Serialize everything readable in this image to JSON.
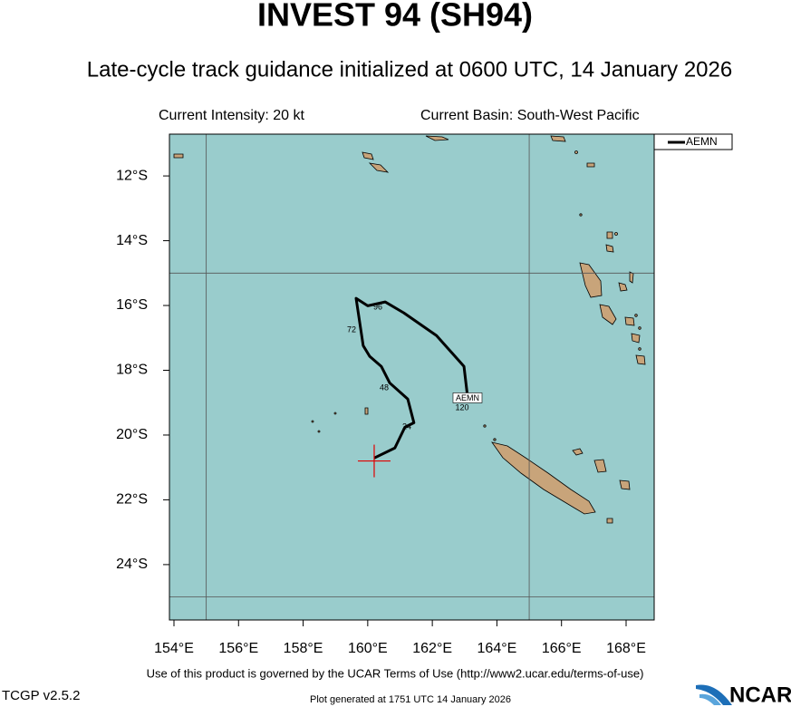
{
  "chart_data": {
    "type": "map",
    "title": "INVEST 94 (SH94)",
    "subtitle": "Late-cycle track guidance initialized at 0600 UTC, 14 January 2026",
    "annotations": [
      "Current Intensity: 20 kt",
      "Current Basin: South-West Pacific"
    ],
    "xlim": [
      153.86,
      168.87
    ],
    "ylim": [
      -25.71,
      -10.71
    ],
    "xticks": [
      {
        "value": 154,
        "label": "154°E"
      },
      {
        "value": 156,
        "label": "156°E"
      },
      {
        "value": 158,
        "label": "158°E"
      },
      {
        "value": 160,
        "label": "160°E"
      },
      {
        "value": 162,
        "label": "162°E"
      },
      {
        "value": 164,
        "label": "164°E"
      },
      {
        "value": 166,
        "label": "166°E"
      },
      {
        "value": 168,
        "label": "168°E"
      }
    ],
    "yticks": [
      {
        "value": -12,
        "label": "12°S"
      },
      {
        "value": -14,
        "label": "14°S"
      },
      {
        "value": -16,
        "label": "16°S"
      },
      {
        "value": -18,
        "label": "18°S"
      },
      {
        "value": -20,
        "label": "20°S"
      },
      {
        "value": -22,
        "label": "22°S"
      },
      {
        "value": -24,
        "label": "24°S"
      }
    ],
    "grid_x": [
      155,
      165
    ],
    "grid_y": [
      -15,
      -25
    ],
    "legend": "top-right",
    "current_position": {
      "x": 160.2,
      "y": -20.8,
      "color": "#e00000"
    },
    "series": [
      {
        "name": "AEMN",
        "color": "#000000",
        "x": [
          160.2,
          160.84,
          161.15,
          161.43,
          161.24,
          160.68,
          160.42,
          160.06,
          159.86,
          159.64,
          160.0,
          160.54,
          161.12,
          162.13,
          162.98,
          163.09
        ],
        "y": [
          -20.71,
          -20.4,
          -19.76,
          -19.62,
          -18.89,
          -18.39,
          -17.88,
          -17.57,
          -17.24,
          -15.78,
          -16.01,
          -15.89,
          -16.23,
          -16.93,
          -17.88,
          -18.81
        ],
        "hour_labels": [
          "24",
          "48",
          "72",
          "96",
          "120"
        ]
      }
    ]
  },
  "footer": {
    "terms": "Use of this product is governed by the UCAR Terms of Use (http://www2.ucar.edu/terms-of-use)",
    "version": "TCGP v2.5.2",
    "generated": "Plot generated at 1751 UTC   14 January 2026",
    "logo": "NCAR"
  }
}
